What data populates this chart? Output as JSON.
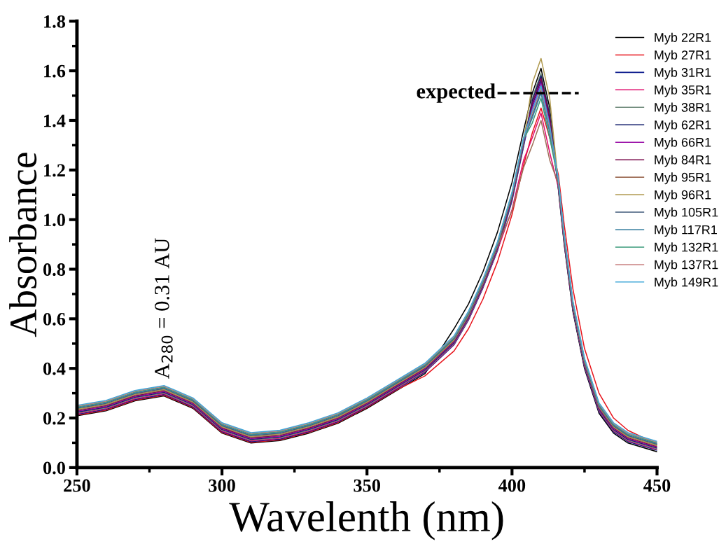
{
  "chart_data": {
    "type": "line",
    "xlabel": "Wavelenth (nm)",
    "ylabel": "Absorbance",
    "x": [
      250,
      260,
      270,
      280,
      290,
      300,
      310,
      320,
      330,
      340,
      350,
      360,
      370,
      380,
      385,
      390,
      395,
      400,
      404,
      407,
      410,
      413,
      416,
      418,
      421,
      425,
      430,
      435,
      440,
      450
    ],
    "xlim": [
      250,
      450
    ],
    "xticks": [
      250,
      300,
      350,
      400,
      450
    ],
    "ylim": [
      0,
      1.8
    ],
    "yticks": [
      {
        "value": 0,
        "label": "0.0"
      },
      0.2,
      0.4,
      0.6,
      0.8,
      {
        "value": 1,
        "label": "1.0"
      },
      1.2,
      1.4,
      1.6,
      1.8
    ],
    "grid": false,
    "legend": "top right",
    "line_style": "solid",
    "marker": "none",
    "series": [
      {
        "name": "Myb 22R1",
        "color": "#000000",
        "values": [
          0.209,
          0.229,
          0.269,
          0.289,
          0.239,
          0.139,
          0.099,
          0.109,
          0.139,
          0.179,
          0.239,
          0.309,
          0.379,
          0.56,
          0.66,
          0.79,
          0.95,
          1.15,
          1.36,
          1.51,
          1.61,
          1.45,
          1.119,
          0.899,
          0.629,
          0.399,
          0.219,
          0.139,
          0.099,
          0.064
        ]
      },
      {
        "name": "Myb 27R1",
        "color": "#e8141c",
        "values": [
          0.212,
          0.232,
          0.272,
          0.292,
          0.242,
          0.142,
          0.102,
          0.112,
          0.142,
          0.182,
          0.242,
          0.312,
          0.37,
          0.47,
          0.56,
          0.68,
          0.83,
          1.02,
          1.22,
          1.35,
          1.45,
          1.33,
          1.18,
          0.98,
          0.72,
          0.48,
          0.3,
          0.2,
          0.15,
          0.095
        ]
      },
      {
        "name": "Myb 31R1",
        "color": "#0a1a8c",
        "values": [
          0.215,
          0.235,
          0.275,
          0.295,
          0.245,
          0.145,
          0.105,
          0.115,
          0.145,
          0.185,
          0.245,
          0.315,
          0.385,
          0.495,
          0.595,
          0.725,
          0.875,
          1.075,
          1.295,
          1.46,
          1.56,
          1.4,
          1.125,
          0.905,
          0.635,
          0.405,
          0.225,
          0.145,
          0.105,
          0.07
        ]
      },
      {
        "name": "Myb 35R1",
        "color": "#e0106e",
        "values": [
          0.218,
          0.238,
          0.278,
          0.298,
          0.248,
          0.148,
          0.108,
          0.118,
          0.148,
          0.188,
          0.248,
          0.318,
          0.388,
          0.498,
          0.598,
          0.728,
          0.878,
          1.04,
          1.24,
          1.33,
          1.43,
          1.27,
          1.128,
          0.908,
          0.638,
          0.408,
          0.228,
          0.148,
          0.108,
          0.073
        ]
      },
      {
        "name": "Myb 38R1",
        "color": "#6f8a7a",
        "values": [
          0.221,
          0.241,
          0.281,
          0.301,
          0.251,
          0.151,
          0.111,
          0.121,
          0.151,
          0.191,
          0.251,
          0.321,
          0.391,
          0.501,
          0.601,
          0.731,
          0.881,
          1.081,
          1.301,
          1.49,
          1.59,
          1.43,
          1.131,
          0.911,
          0.641,
          0.411,
          0.231,
          0.151,
          0.111,
          0.076
        ]
      },
      {
        "name": "Myb 62R1",
        "color": "#101a6a",
        "values": [
          0.224,
          0.244,
          0.284,
          0.304,
          0.254,
          0.154,
          0.114,
          0.124,
          0.154,
          0.194,
          0.254,
          0.324,
          0.394,
          0.504,
          0.604,
          0.734,
          0.884,
          1.084,
          1.304,
          1.48,
          1.58,
          1.42,
          1.134,
          0.914,
          0.644,
          0.414,
          0.234,
          0.154,
          0.114,
          0.079
        ]
      },
      {
        "name": "Myb 66R1",
        "color": "#9a10a8",
        "values": [
          0.227,
          0.247,
          0.287,
          0.307,
          0.257,
          0.157,
          0.117,
          0.127,
          0.157,
          0.197,
          0.257,
          0.327,
          0.397,
          0.507,
          0.607,
          0.737,
          0.887,
          1.087,
          1.307,
          1.45,
          1.55,
          1.39,
          1.137,
          0.917,
          0.647,
          0.417,
          0.237,
          0.157,
          0.117,
          0.082
        ]
      },
      {
        "name": "Myb 84R1",
        "color": "#7a0a4a",
        "values": [
          0.23,
          0.25,
          0.29,
          0.31,
          0.26,
          0.16,
          0.12,
          0.13,
          0.16,
          0.2,
          0.26,
          0.33,
          0.4,
          0.51,
          0.61,
          0.74,
          0.89,
          1.09,
          1.31,
          1.47,
          1.57,
          1.41,
          1.14,
          0.92,
          0.65,
          0.42,
          0.24,
          0.16,
          0.12,
          0.085
        ]
      },
      {
        "name": "Myb 95R1",
        "color": "#a0705a",
        "values": [
          0.233,
          0.253,
          0.293,
          0.313,
          0.263,
          0.163,
          0.123,
          0.133,
          0.163,
          0.203,
          0.263,
          0.333,
          0.403,
          0.513,
          0.613,
          0.743,
          0.893,
          1.035,
          1.21,
          1.3,
          1.4,
          1.24,
          1.143,
          0.923,
          0.653,
          0.423,
          0.243,
          0.163,
          0.123,
          0.088
        ]
      },
      {
        "name": "Myb 96R1",
        "color": "#b09a50",
        "values": [
          0.236,
          0.256,
          0.296,
          0.316,
          0.266,
          0.166,
          0.126,
          0.136,
          0.166,
          0.206,
          0.266,
          0.336,
          0.406,
          0.516,
          0.616,
          0.746,
          0.896,
          1.096,
          1.316,
          1.55,
          1.65,
          1.49,
          1.146,
          0.926,
          0.656,
          0.426,
          0.246,
          0.166,
          0.126,
          0.091
        ]
      },
      {
        "name": "Myb 105R1",
        "color": "#405a7a",
        "values": [
          0.239,
          0.259,
          0.299,
          0.319,
          0.269,
          0.169,
          0.129,
          0.139,
          0.169,
          0.209,
          0.269,
          0.339,
          0.409,
          0.519,
          0.619,
          0.749,
          0.899,
          1.099,
          1.319,
          1.42,
          1.52,
          1.36,
          1.149,
          0.929,
          0.659,
          0.429,
          0.249,
          0.169,
          0.129,
          0.094
        ]
      },
      {
        "name": "Myb 117R1",
        "color": "#3a80a0",
        "values": [
          0.242,
          0.262,
          0.302,
          0.322,
          0.272,
          0.172,
          0.132,
          0.142,
          0.172,
          0.212,
          0.272,
          0.342,
          0.412,
          0.522,
          0.622,
          0.752,
          0.902,
          1.102,
          1.322,
          1.41,
          1.51,
          1.35,
          1.152,
          0.932,
          0.662,
          0.432,
          0.252,
          0.172,
          0.132,
          0.097
        ]
      },
      {
        "name": "Myb 132R1",
        "color": "#3a9a7a",
        "values": [
          0.245,
          0.265,
          0.305,
          0.325,
          0.275,
          0.175,
          0.135,
          0.145,
          0.175,
          0.215,
          0.275,
          0.345,
          0.415,
          0.525,
          0.625,
          0.755,
          0.905,
          1.105,
          1.325,
          1.39,
          1.49,
          1.33,
          1.155,
          0.935,
          0.665,
          0.435,
          0.255,
          0.175,
          0.135,
          0.1
        ]
      },
      {
        "name": "Myb 137R1",
        "color": "#c88080",
        "values": [
          0.248,
          0.268,
          0.308,
          0.328,
          0.278,
          0.178,
          0.138,
          0.148,
          0.178,
          0.218,
          0.278,
          0.348,
          0.418,
          0.528,
          0.628,
          0.758,
          0.908,
          1.108,
          1.328,
          1.43,
          1.53,
          1.37,
          1.158,
          0.938,
          0.668,
          0.438,
          0.258,
          0.178,
          0.138,
          0.103
        ]
      },
      {
        "name": "Myb 149R1",
        "color": "#40a8d8",
        "values": [
          0.251,
          0.271,
          0.311,
          0.331,
          0.281,
          0.181,
          0.141,
          0.151,
          0.181,
          0.221,
          0.281,
          0.351,
          0.421,
          0.531,
          0.631,
          0.761,
          0.911,
          1.111,
          1.331,
          1.44,
          1.54,
          1.38,
          1.161,
          0.941,
          0.671,
          0.441,
          0.261,
          0.181,
          0.141,
          0.106
        ]
      }
    ],
    "ref_lines": [
      {
        "axis": "y",
        "value": 1.51,
        "label": "expected",
        "line_style": "dashed",
        "color": "#000000"
      }
    ],
    "annotations": [
      {
        "text": "A$_{280}$ = 0.31 AU",
        "x": 280,
        "y": 0.31
      }
    ]
  }
}
